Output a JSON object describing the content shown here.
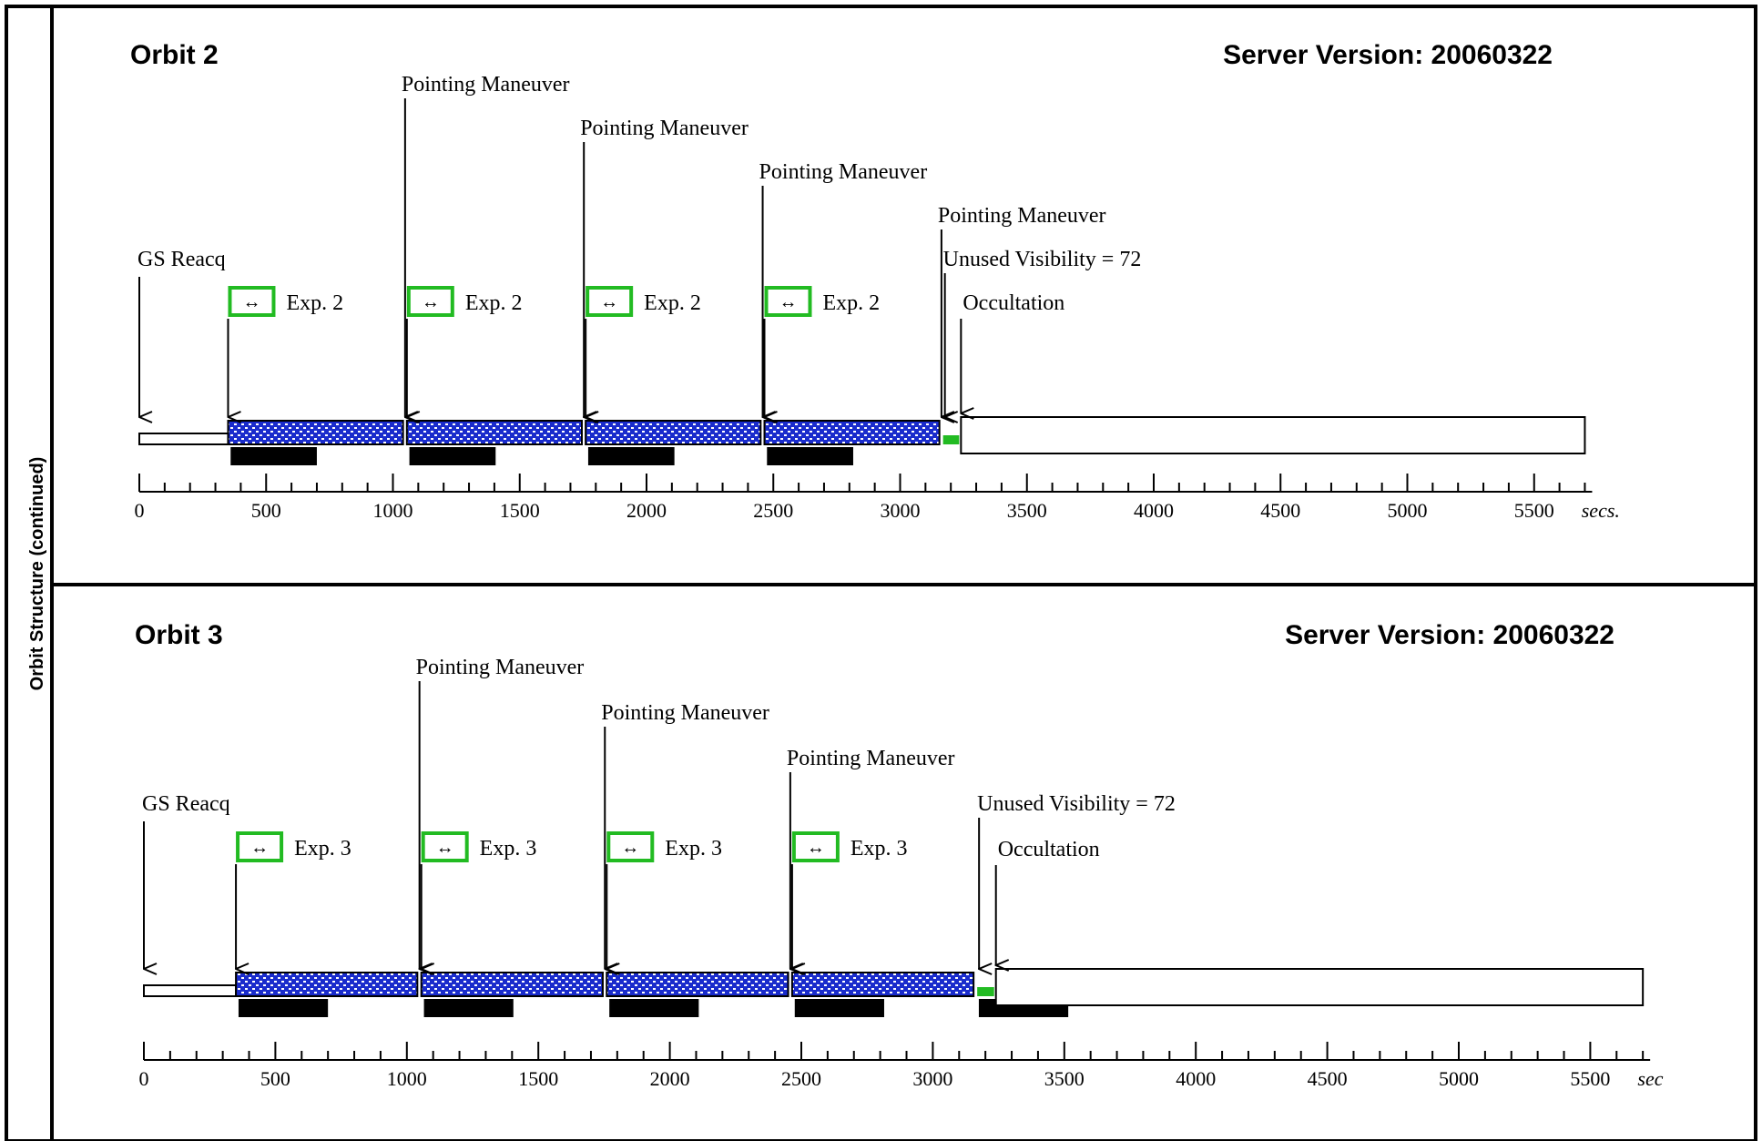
{
  "side_title": "Orbit Structure (continued)",
  "colors": {
    "border": "#000000",
    "exposure_fill": "#1a2ccc",
    "exposure_dots": "#ffffff",
    "icon_border": "#22bb22",
    "occultation_marker": "#22bb22",
    "bar": "#000000"
  },
  "panels": [
    {
      "orbit_title": "Orbit 2",
      "server_version": "Server Version: 20060322",
      "axis": {
        "ticks": [
          "0",
          "500",
          "1000",
          "1500",
          "2000",
          "2500",
          "3000",
          "3500",
          "4000",
          "4500",
          "5000",
          "5500"
        ],
        "unit": "secs."
      },
      "gs_reacq_label": "GS Reacq",
      "gs_reacq_time": 0,
      "exposures": [
        {
          "label": "Exp. 2",
          "start": 350,
          "end": 1040
        },
        {
          "label": "Exp. 2",
          "start": 1055,
          "end": 1745
        },
        {
          "label": "Exp. 2",
          "start": 1760,
          "end": 2450
        },
        {
          "label": "Exp. 2",
          "start": 2465,
          "end": 3155
        }
      ],
      "bars": [
        {
          "start": 360,
          "end": 700
        },
        {
          "start": 1065,
          "end": 1405
        },
        {
          "start": 1770,
          "end": 2110
        },
        {
          "start": 2475,
          "end": 2815
        }
      ],
      "maneuvers": [
        {
          "label": "Pointing Maneuver",
          "time": 1048
        },
        {
          "label": "Pointing Maneuver",
          "time": 1753
        },
        {
          "label": "Pointing Maneuver",
          "time": 2458
        },
        {
          "label": "Pointing Maneuver",
          "time": 3163
        }
      ],
      "unused_visibility": "Unused Visibility = 72",
      "occultation_label": "Occultation",
      "occultation_start": 3240,
      "orbit_end": 5700
    },
    {
      "orbit_title": "Orbit 3",
      "server_version": "Server Version: 20060322",
      "axis": {
        "ticks": [
          "0",
          "500",
          "1000",
          "1500",
          "2000",
          "2500",
          "3000",
          "3500",
          "4000",
          "4500",
          "5000",
          "5500"
        ],
        "unit": "sec"
      },
      "gs_reacq_label": "GS Reacq",
      "gs_reacq_time": 0,
      "exposures": [
        {
          "label": "Exp. 3",
          "start": 350,
          "end": 1040
        },
        {
          "label": "Exp. 3",
          "start": 1055,
          "end": 1745
        },
        {
          "label": "Exp. 3",
          "start": 1760,
          "end": 2450
        },
        {
          "label": "Exp. 3",
          "start": 2465,
          "end": 3155
        }
      ],
      "bars": [
        {
          "start": 360,
          "end": 700
        },
        {
          "start": 1065,
          "end": 1405
        },
        {
          "start": 1770,
          "end": 2110
        },
        {
          "start": 2475,
          "end": 2815
        },
        {
          "start": 3175,
          "end": 3515
        }
      ],
      "maneuvers": [
        {
          "label": "Pointing Maneuver",
          "time": 1048
        },
        {
          "label": "Pointing Maneuver",
          "time": 1753
        },
        {
          "label": "Pointing Maneuver",
          "time": 2458
        }
      ],
      "unused_visibility": "Unused Visibility = 72",
      "occultation_label": "Occultation",
      "occultation_start": 3240,
      "orbit_end": 5700
    }
  ]
}
